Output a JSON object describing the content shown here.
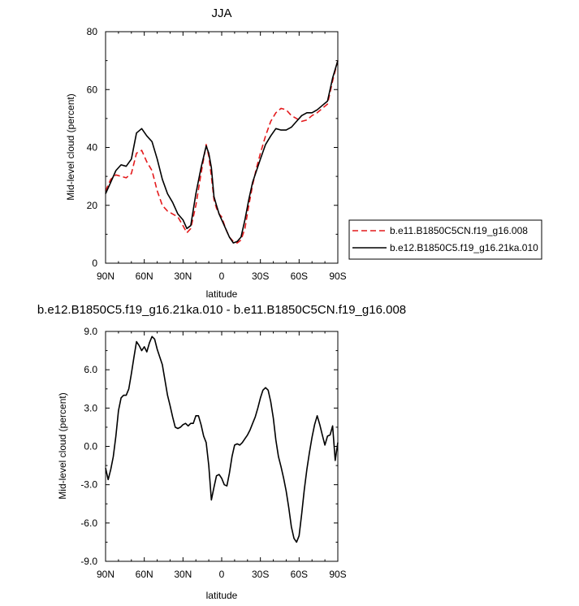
{
  "chart_data": [
    {
      "type": "line",
      "title": "JJA",
      "xlabel": "latitude",
      "ylabel": "Mid-level cloud (percent)",
      "xlim": [
        90,
        -90
      ],
      "ylim": [
        0,
        80
      ],
      "x_ticks": [
        90,
        60,
        30,
        0,
        -30,
        -60,
        -90
      ],
      "x_tick_labels": [
        "90N",
        "60N",
        "30N",
        "0",
        "30S",
        "60S",
        "90S"
      ],
      "y_ticks": [
        0,
        20,
        40,
        60,
        80
      ],
      "y_tick_labels": [
        "0",
        "20",
        "40",
        "60",
        "80"
      ],
      "legend_position": "right",
      "series": [
        {
          "name": "b.e11.B1850C5CN.f19_g16.008",
          "color": "#e41a1c",
          "dash": "dashed",
          "x": [
            90,
            86,
            82,
            78,
            74,
            70,
            66,
            62,
            58,
            54,
            50,
            46,
            42,
            38,
            34,
            30,
            27,
            24,
            20,
            16,
            12,
            10,
            8,
            6,
            4,
            2,
            0,
            -3,
            -6,
            -9,
            -12,
            -15,
            -18,
            -21,
            -24,
            -27,
            -30,
            -34,
            -38,
            -42,
            -46,
            -50,
            -54,
            -58,
            -62,
            -66,
            -70,
            -74,
            -78,
            -82,
            -86,
            -90
          ],
          "y": [
            25,
            29,
            30.5,
            30,
            29.5,
            31,
            38,
            39,
            35,
            32,
            25,
            20,
            18,
            17,
            16,
            13,
            10.5,
            12,
            20,
            31,
            41,
            37,
            30,
            22,
            19,
            17,
            16,
            12,
            9,
            7.5,
            7,
            8,
            12,
            20,
            27,
            33,
            38,
            44,
            49,
            52,
            53.5,
            53,
            51,
            50,
            49,
            49.5,
            51,
            52,
            53.5,
            55,
            63,
            70
          ]
        },
        {
          "name": "b.e12.B1850C5.f19_g16.21ka.010",
          "color": "#000000",
          "dash": "solid",
          "x": [
            90,
            86,
            82,
            78,
            74,
            70,
            66,
            62,
            58,
            54,
            50,
            46,
            42,
            38,
            34,
            30,
            27,
            24,
            20,
            16,
            12,
            10,
            8,
            6,
            4,
            2,
            0,
            -3,
            -6,
            -9,
            -12,
            -15,
            -18,
            -21,
            -24,
            -27,
            -30,
            -34,
            -38,
            -42,
            -46,
            -50,
            -54,
            -58,
            -62,
            -66,
            -70,
            -74,
            -78,
            -82,
            -86,
            -90
          ],
          "y": [
            24,
            28,
            32,
            34,
            33.5,
            36,
            45,
            46.5,
            44,
            42,
            36,
            29,
            24,
            21,
            17,
            15,
            12,
            13,
            24,
            33,
            40.5,
            38,
            33,
            23,
            20,
            17,
            15,
            12,
            9,
            7,
            7.5,
            9,
            15,
            22,
            28,
            32,
            36,
            41,
            44,
            46.5,
            46,
            46,
            47,
            49,
            51,
            52,
            52,
            53,
            54.5,
            56,
            64,
            70
          ]
        }
      ]
    },
    {
      "type": "line",
      "title": "b.e12.B1850C5.f19_g16.21ka.010 - b.e11.B1850C5CN.f19_g16.008",
      "xlabel": "latitude",
      "ylabel": "Mid-level cloud (percent)",
      "xlim": [
        90,
        -90
      ],
      "ylim": [
        -9,
        9
      ],
      "x_ticks": [
        90,
        60,
        30,
        0,
        -30,
        -60,
        -90
      ],
      "x_tick_labels": [
        "90N",
        "60N",
        "30N",
        "0",
        "30S",
        "60S",
        "90S"
      ],
      "y_ticks": [
        9,
        6,
        3,
        0,
        -3,
        -6,
        -9
      ],
      "y_tick_labels": [
        "9.0",
        "6.0",
        "3.0",
        "0.0",
        "-3.0",
        "-6.0",
        "-9.0"
      ],
      "series": [
        {
          "color": "#000000",
          "dash": "solid",
          "x": [
            90,
            88,
            86,
            84,
            82,
            80,
            78,
            76,
            74,
            72,
            70,
            68,
            66,
            64,
            62,
            60,
            58,
            56,
            54,
            52,
            50,
            48,
            46,
            44,
            42,
            40,
            38,
            36,
            34,
            32,
            30,
            28,
            26,
            24,
            22,
            20,
            18,
            16,
            14,
            12,
            10,
            8,
            6,
            4,
            2,
            0,
            -2,
            -4,
            -6,
            -8,
            -10,
            -12,
            -14,
            -16,
            -18,
            -20,
            -22,
            -24,
            -26,
            -28,
            -30,
            -32,
            -34,
            -36,
            -38,
            -40,
            -42,
            -44,
            -46,
            -48,
            -50,
            -52,
            -54,
            -56,
            -58,
            -60,
            -62,
            -64,
            -66,
            -68,
            -70,
            -72,
            -74,
            -76,
            -78,
            -80,
            -82,
            -84,
            -86,
            -88,
            -90
          ],
          "y": [
            -1.7,
            -2.6,
            -1.8,
            -0.8,
            0.8,
            2.8,
            3.8,
            4.0,
            4.0,
            4.5,
            5.7,
            7.0,
            8.2,
            7.9,
            7.5,
            7.8,
            7.4,
            8.1,
            8.6,
            8.4,
            7.6,
            7.0,
            6.4,
            5.2,
            4.0,
            3.2,
            2.3,
            1.5,
            1.4,
            1.5,
            1.7,
            1.8,
            1.6,
            1.8,
            1.8,
            2.4,
            2.4,
            1.7,
            0.8,
            0.3,
            -1.5,
            -4.2,
            -3.2,
            -2.3,
            -2.2,
            -2.5,
            -3.0,
            -3.1,
            -2.1,
            -0.8,
            0.1,
            0.2,
            0.1,
            0.3,
            0.6,
            0.9,
            1.3,
            1.8,
            2.3,
            3.0,
            3.8,
            4.4,
            4.6,
            4.4,
            3.5,
            2.2,
            0.5,
            -0.8,
            -1.6,
            -2.5,
            -3.5,
            -4.8,
            -6.3,
            -7.2,
            -7.5,
            -7.0,
            -5.3,
            -3.4,
            -1.8,
            -0.5,
            0.7,
            1.7,
            2.4,
            1.7,
            0.9,
            0.1,
            0.8,
            0.9,
            1.6,
            -1.1,
            0.3
          ]
        }
      ]
    }
  ]
}
